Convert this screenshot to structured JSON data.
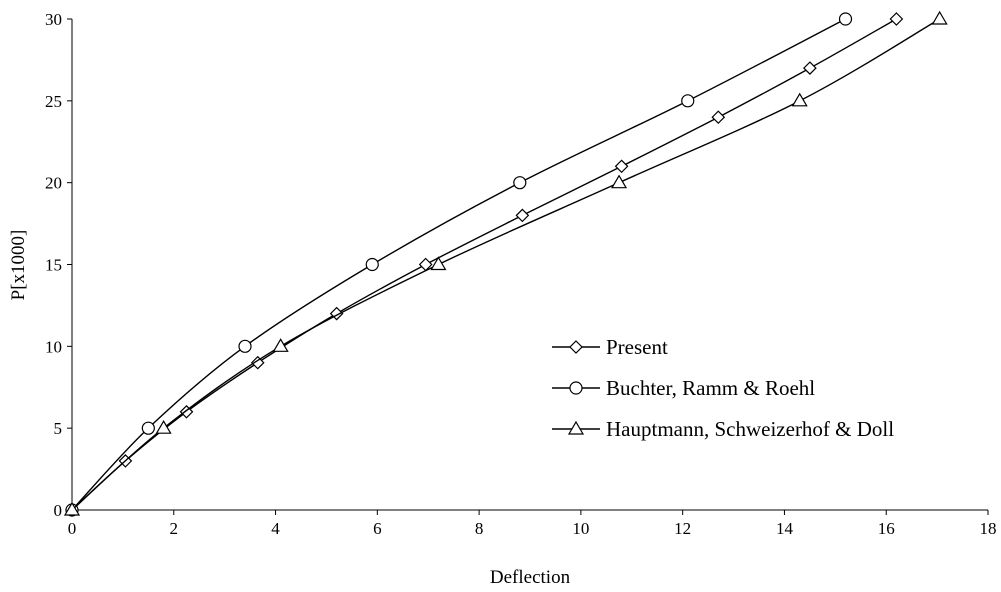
{
  "chart_data": {
    "type": "line",
    "title": "",
    "xlabel": "Deflection",
    "ylabel": "P[x1000]",
    "xlim": [
      0,
      18
    ],
    "ylim": [
      0,
      30
    ],
    "x_ticks": [
      0,
      2,
      4,
      6,
      8,
      10,
      12,
      14,
      16,
      18
    ],
    "y_ticks": [
      0,
      5,
      10,
      15,
      20,
      25,
      30
    ],
    "grid": false,
    "legend_position": "right",
    "line_color": "#000000",
    "series": [
      {
        "name": "Present",
        "marker": "diamond",
        "x": [
          0,
          1.05,
          2.25,
          3.65,
          5.2,
          6.95,
          8.85,
          10.8,
          12.7,
          14.5,
          16.2
        ],
        "y": [
          0,
          3,
          6,
          9,
          12,
          15,
          18,
          21,
          24,
          27,
          30
        ]
      },
      {
        "name": "Buchter, Ramm & Roehl",
        "marker": "circle",
        "x": [
          0,
          1.5,
          3.4,
          5.9,
          8.8,
          12.1,
          15.2
        ],
        "y": [
          0,
          5,
          10,
          15,
          20,
          25,
          30
        ]
      },
      {
        "name": "Hauptmann, Schweizerhof & Doll",
        "marker": "triangle",
        "x": [
          0,
          1.8,
          4.1,
          7.2,
          10.75,
          14.3,
          17.05
        ],
        "y": [
          0,
          5,
          10,
          15,
          20,
          25,
          30
        ]
      }
    ]
  }
}
